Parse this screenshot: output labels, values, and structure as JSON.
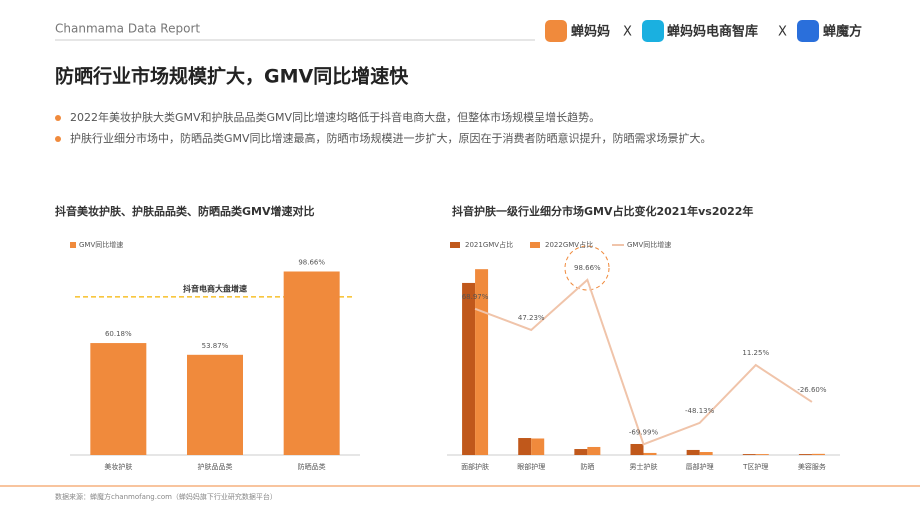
{
  "header": {
    "brand": "Chanmama Data Report",
    "logos": [
      "蝉妈妈",
      "X",
      "蝉妈妈电商智库",
      "X",
      "蝉魔方"
    ]
  },
  "title": "防晒行业市场规模扩大，GMV同比增速快",
  "bullets": [
    "2022年美妆护肤大类GMV和护肤品品类GMV同比增速均略低于抖音电商大盘，但整体市场规模呈增长趋势。",
    "护肤行业细分市场中，防晒品类GMV同比增速最高，防晒市场规模进一步扩大，原因在于消费者防晒意识提升，防晒需求场景扩大。"
  ],
  "chart_data": [
    {
      "type": "bar",
      "title": "抖音美妆护肤、护肤品品类、防晒品类GMV增速对比",
      "categories": [
        "美妆护肤",
        "护肤品品类",
        "防晒品类"
      ],
      "series": [
        {
          "name": "GMV同比增速",
          "color": "#f08a3c",
          "values": [
            60.18,
            53.87,
            98.66
          ],
          "value_labels": [
            "60.18%",
            "53.87%",
            "98.66%"
          ]
        }
      ],
      "ylim": [
        0,
        100
      ],
      "reference_line": {
        "label": "抖音电商大盘增速",
        "value": 85,
        "color": "#f5b400"
      }
    },
    {
      "type": "bar_line",
      "title": "抖音护肤一级行业细分市场GMV占比变化2021年vs2022年",
      "categories": [
        "面部护肤",
        "眼部护理",
        "防晒",
        "男士护肤",
        "唇部护理",
        "T区护理",
        "美容服务"
      ],
      "series": [
        {
          "name": "2021GMV占比",
          "color": "#c0581b",
          "values": [
            75,
            7.4,
            2.6,
            4.8,
            2.2,
            0.4,
            0.4
          ]
        },
        {
          "name": "2022GMV占比",
          "color": "#f08a3c",
          "values": [
            81,
            7.2,
            3.5,
            0.9,
            1.3,
            0.4,
            0.5
          ]
        },
        {
          "name": "GMV同比增速",
          "color": "#f0c4aa",
          "axis": "y2",
          "values": [
            68.97,
            47.23,
            98.66,
            -69.99,
            -48.13,
            11.25,
            -26.6
          ],
          "value_labels": [
            "68.97%",
            "47.23%",
            "98.66%",
            "-69.99%",
            "-48.13%",
            "11.25%",
            "-26.60%"
          ]
        }
      ],
      "ylim": [
        0,
        85
      ],
      "y2lim": [
        -81,
        119
      ]
    }
  ],
  "source": "数据来源：蝉魔方chanmofang.com（蝉妈妈旗下行业研究数据平台）"
}
